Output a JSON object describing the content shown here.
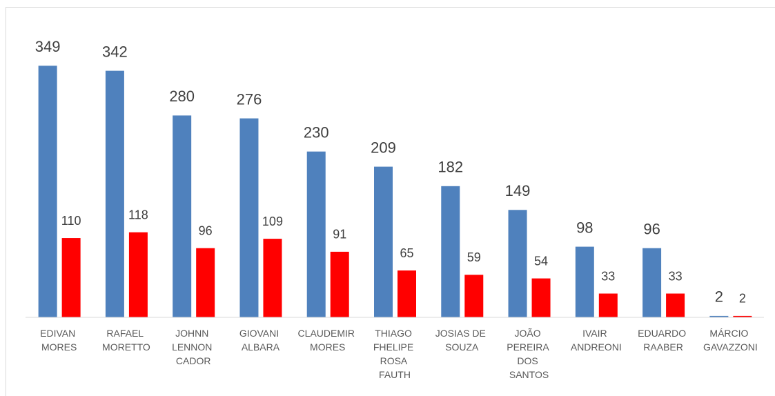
{
  "chart_data": {
    "type": "bar",
    "categories": [
      "EDIVAN MORES",
      "RAFAEL MORETTO",
      "JOHNN LENNON CADOR",
      "GIOVANI ALBARA",
      "CLAUDEMIR MORES",
      "THIAGO FHELIPE ROSA FAUTH",
      "JOSIAS DE SOUZA",
      "JOÃO PEREIRA DOS SANTOS",
      "IVAIR ANDREONI",
      "EDUARDO RAABER",
      "MÁRCIO GAVAZZONI"
    ],
    "series": [
      {
        "color": "#4f81bd",
        "values": [
          349,
          342,
          280,
          276,
          230,
          209,
          182,
          149,
          98,
          96,
          2
        ]
      },
      {
        "color": "#ff0000",
        "values": [
          110,
          118,
          96,
          109,
          91,
          65,
          59,
          54,
          33,
          33,
          2
        ]
      }
    ],
    "ylim": [
      0,
      400
    ]
  }
}
